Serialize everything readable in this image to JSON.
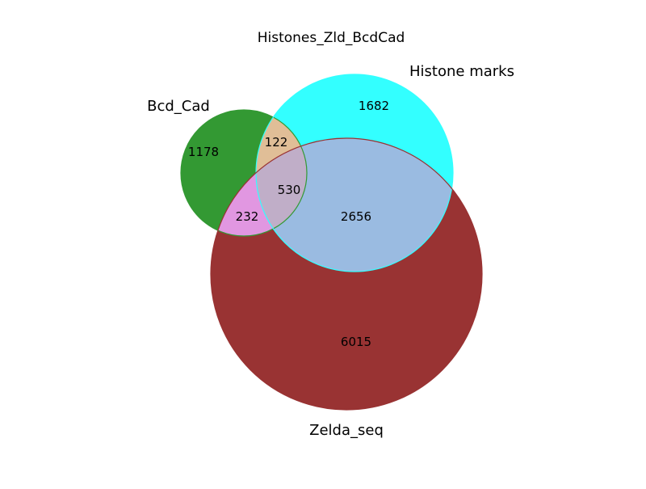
{
  "title": "Histones_Zld_BcdCad",
  "sets": {
    "bcd_cad": {
      "label": "Bcd_Cad",
      "color": "#339933"
    },
    "histone_marks": {
      "label": "Histone marks",
      "color": "#33ffff"
    },
    "zelda_seq": {
      "label": "Zelda_seq",
      "color": "#993333"
    }
  },
  "regions": {
    "bcd_only": {
      "count": "1178",
      "color": "#339933"
    },
    "histone_only": {
      "count": "1682",
      "color": "#33ffff"
    },
    "zelda_only": {
      "count": "6015",
      "color": "#993333"
    },
    "bcd_histone": {
      "count": "122",
      "color": "#e0be97"
    },
    "bcd_zelda": {
      "count": "232",
      "color": "#e197e1"
    },
    "histone_zelda": {
      "count": "2656",
      "color": "#9abbe1"
    },
    "all_three": {
      "count": "530",
      "color": "#c0aec8"
    }
  }
}
